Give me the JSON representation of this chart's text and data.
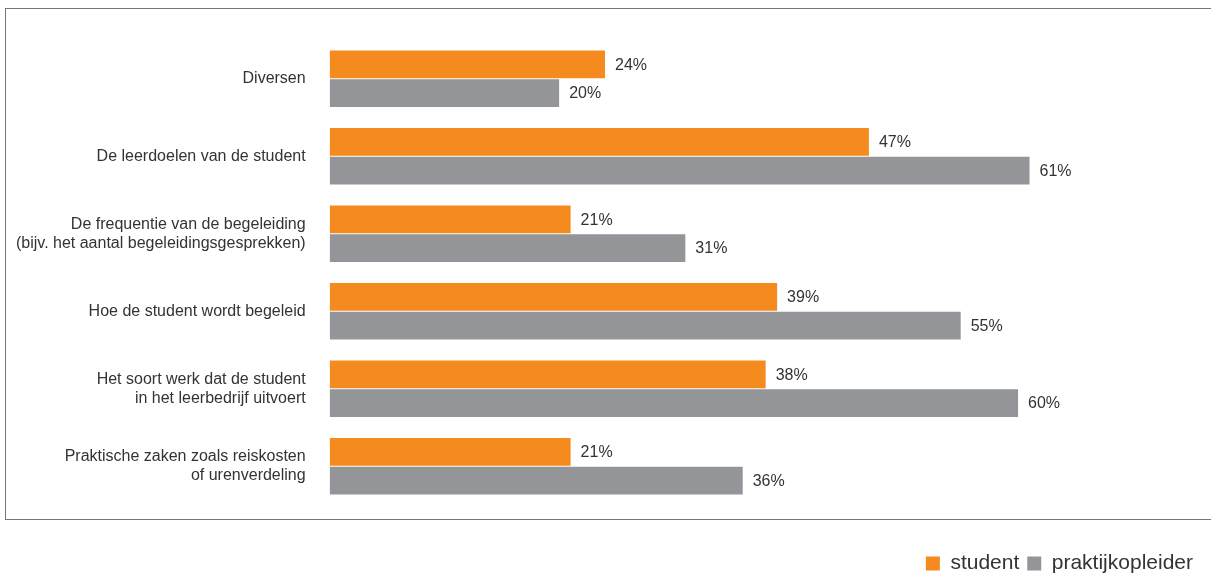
{
  "chart_data": {
    "type": "bar",
    "orientation": "horizontal",
    "legend": "bottom right",
    "categories": [
      "Diversen",
      "De leerdoelen van de student",
      "De frequentie van de begeleiding\n(bijv. het aantal begeleidingsgesprekken)",
      "Hoe de student wordt begeleid",
      "Het soort werk dat de student\nin het leerbedrijf uitvoert",
      "Praktische zaken zoals reiskosten\nof urenverdeling"
    ],
    "series": [
      {
        "name": "student",
        "color": "#f58b1f",
        "values": [
          24,
          47,
          21,
          39,
          38,
          21
        ],
        "value_labels": [
          "24%",
          "47%",
          "21%",
          "39%",
          "38%",
          "21%"
        ]
      },
      {
        "name": "praktijkopleider",
        "color": "#939598",
        "values": [
          20,
          61,
          31,
          55,
          60,
          36
        ],
        "value_labels": [
          "20%",
          "61%",
          "31%",
          "55%",
          "60%",
          "36%"
        ]
      }
    ]
  }
}
